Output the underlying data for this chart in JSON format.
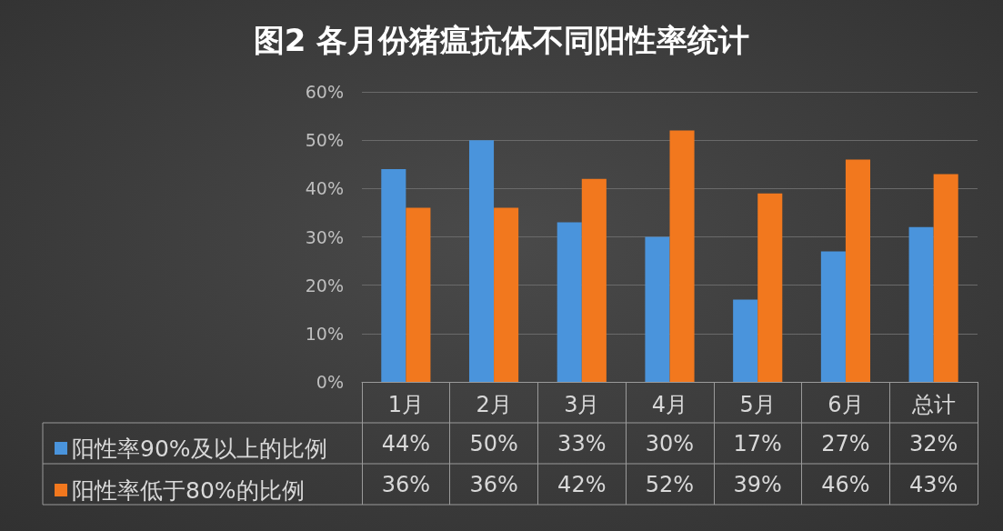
{
  "chart_data": {
    "type": "bar",
    "title": "图2 各月份猪瘟抗体不同阳性率统计",
    "categories": [
      "1月",
      "2月",
      "3月",
      "4月",
      "5月",
      "6月",
      "总计"
    ],
    "series": [
      {
        "name": "阳性率90%及以上的比例",
        "color": "#4a94dc",
        "values": [
          44,
          50,
          33,
          30,
          17,
          27,
          32
        ],
        "value_labels": [
          "44%",
          "50%",
          "33%",
          "30%",
          "17%",
          "27%",
          "32%"
        ]
      },
      {
        "name": "阳性率低于80%的比例",
        "color": "#f2781e",
        "values": [
          36,
          36,
          42,
          52,
          39,
          46,
          43
        ],
        "value_labels": [
          "36%",
          "36%",
          "42%",
          "52%",
          "39%",
          "46%",
          "43%"
        ]
      }
    ],
    "ylim": [
      0,
      60
    ],
    "yticks": [
      {
        "value": 0,
        "label": "0%"
      },
      {
        "value": 10,
        "label": "10%"
      },
      {
        "value": 20,
        "label": "20%"
      },
      {
        "value": 30,
        "label": "30%"
      },
      {
        "value": 40,
        "label": "40%"
      },
      {
        "value": 50,
        "label": "50%"
      },
      {
        "value": 60,
        "label": "60%"
      }
    ],
    "grid": "y",
    "legend": "bottom left"
  }
}
